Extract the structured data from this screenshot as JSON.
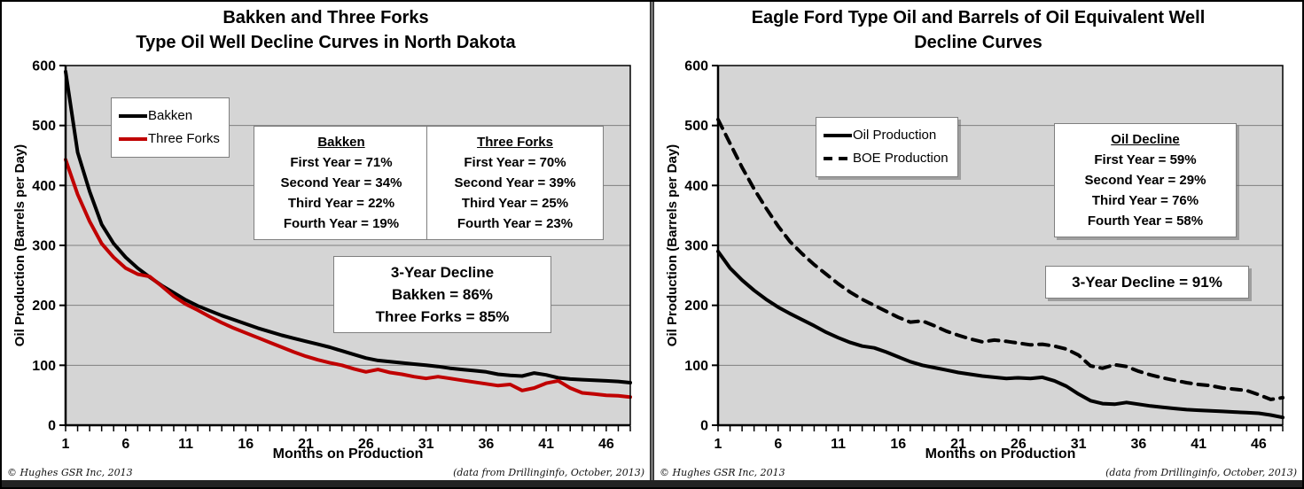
{
  "frame": {
    "footer_left": "© Hughes GSR Inc, 2013",
    "footer_right": "(data from Drillinginfo, October, 2013)"
  },
  "chart_data": [
    {
      "type": "line",
      "title_lines": [
        "Bakken and Three Forks",
        "Type Oil Well Decline Curves in North Dakota"
      ],
      "xlabel": "Months on Production",
      "ylabel": "Oil Production (Barrels per Day)",
      "xlim": [
        1,
        48
      ],
      "ylim": [
        0,
        600
      ],
      "yticks": [
        0,
        100,
        200,
        300,
        400,
        500,
        600
      ],
      "xticks": [
        1,
        6,
        11,
        16,
        21,
        26,
        31,
        36,
        41,
        46
      ],
      "grid": "horizontal",
      "plot_bg": "#d5d5d5",
      "legend_position": "upper-left-inset",
      "x": [
        1,
        2,
        3,
        4,
        5,
        6,
        7,
        8,
        9,
        10,
        11,
        12,
        13,
        14,
        15,
        16,
        17,
        18,
        19,
        20,
        21,
        22,
        23,
        24,
        25,
        26,
        27,
        28,
        29,
        30,
        31,
        32,
        33,
        34,
        35,
        36,
        37,
        38,
        39,
        40,
        41,
        42,
        43,
        44,
        45,
        46,
        47,
        48
      ],
      "series": [
        {
          "name": "Bakken",
          "color": "#000000",
          "dash": "solid",
          "values": [
            590,
            455,
            390,
            335,
            303,
            280,
            262,
            247,
            233,
            221,
            209,
            199,
            191,
            183,
            176,
            169,
            162,
            156,
            150,
            145,
            140,
            135,
            130,
            124,
            118,
            112,
            108,
            106,
            104,
            102,
            100,
            98,
            95,
            93,
            91,
            89,
            85,
            83,
            82,
            87,
            84,
            79,
            77,
            76,
            75,
            74,
            73,
            71
          ]
        },
        {
          "name": "Three Forks",
          "color": "#c00000",
          "dash": "solid",
          "values": [
            443,
            385,
            340,
            303,
            280,
            262,
            252,
            248,
            232,
            215,
            202,
            192,
            181,
            171,
            162,
            154,
            146,
            138,
            130,
            122,
            115,
            109,
            104,
            100,
            94,
            89,
            93,
            88,
            85,
            81,
            78,
            81,
            78,
            75,
            72,
            69,
            66,
            68,
            58,
            62,
            70,
            74,
            62,
            54,
            52,
            50,
            49,
            47
          ]
        }
      ],
      "annotation_boxes": [
        {
          "title": "Bakken",
          "lines": [
            "First Year = 71%",
            "Second Year = 34%",
            "Third Year = 22%",
            "Fourth Year = 19%"
          ]
        },
        {
          "title": "Three Forks",
          "lines": [
            "First Year = 70%",
            "Second Year = 39%",
            "Third Year = 25%",
            "Fourth Year = 23%"
          ]
        }
      ],
      "summary_box": {
        "lines": [
          "3-Year Decline",
          "Bakken = 86%",
          "Three Forks = 85%"
        ]
      }
    },
    {
      "type": "line",
      "title_lines": [
        "Eagle Ford Type Oil and Barrels of Oil Equivalent Well",
        "Decline Curves"
      ],
      "xlabel": "Months on Production",
      "ylabel": "Oil Production (Barrels per Day)",
      "xlim": [
        1,
        48
      ],
      "ylim": [
        0,
        600
      ],
      "yticks": [
        0,
        100,
        200,
        300,
        400,
        500,
        600
      ],
      "xticks": [
        1,
        6,
        11,
        16,
        21,
        26,
        31,
        36,
        41,
        46
      ],
      "grid": "horizontal",
      "plot_bg": "#d5d5d5",
      "legend_position": "upper-center-inset",
      "x": [
        1,
        2,
        3,
        4,
        5,
        6,
        7,
        8,
        9,
        10,
        11,
        12,
        13,
        14,
        15,
        16,
        17,
        18,
        19,
        20,
        21,
        22,
        23,
        24,
        25,
        26,
        27,
        28,
        29,
        30,
        31,
        32,
        33,
        34,
        35,
        36,
        37,
        38,
        39,
        40,
        41,
        42,
        43,
        44,
        45,
        46,
        47,
        48
      ],
      "series": [
        {
          "name": "Oil Production",
          "color": "#000000",
          "dash": "solid",
          "values": [
            290,
            262,
            242,
            225,
            210,
            197,
            186,
            176,
            166,
            155,
            146,
            138,
            132,
            129,
            122,
            114,
            106,
            100,
            96,
            92,
            88,
            85,
            82,
            80,
            78,
            79,
            78,
            80,
            74,
            65,
            52,
            41,
            36,
            35,
            38,
            35,
            32,
            30,
            28,
            26,
            25,
            24,
            23,
            22,
            21,
            20,
            17,
            13
          ]
        },
        {
          "name": "BOE Production",
          "color": "#000000",
          "dash": "dashed",
          "values": [
            510,
            470,
            430,
            394,
            362,
            332,
            306,
            286,
            268,
            252,
            236,
            222,
            210,
            200,
            190,
            180,
            172,
            174,
            166,
            157,
            150,
            144,
            139,
            142,
            140,
            137,
            134,
            135,
            132,
            127,
            117,
            99,
            95,
            101,
            98,
            90,
            84,
            79,
            75,
            71,
            68,
            66,
            62,
            60,
            58,
            51,
            43,
            46
          ]
        }
      ],
      "annotation_boxes": [
        {
          "title": "Oil Decline",
          "lines": [
            "First Year = 59%",
            "Second Year = 29%",
            "Third Year = 76%",
            "Fourth Year = 58%"
          ]
        }
      ],
      "summary_box": {
        "lines": [
          "3-Year Decline = 91%"
        ]
      }
    }
  ]
}
